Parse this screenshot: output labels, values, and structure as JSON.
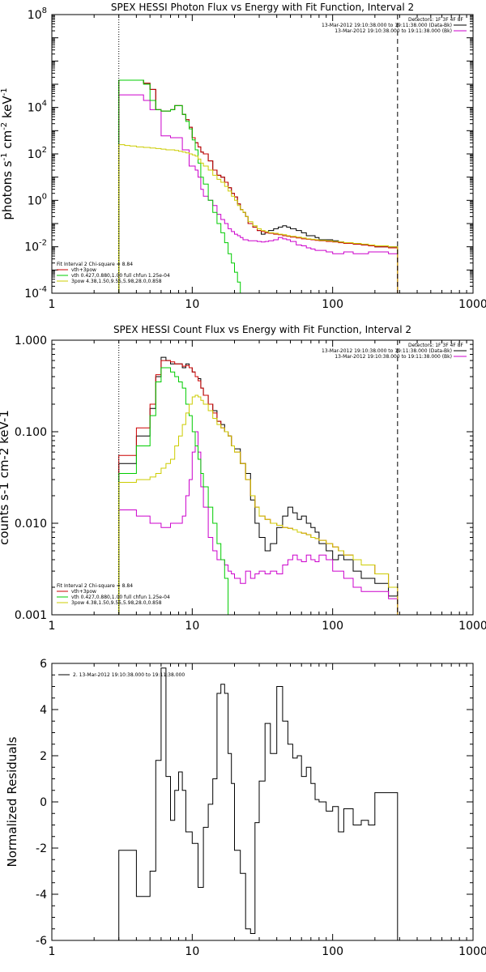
{
  "chart_data": [
    {
      "type": "line",
      "title": "SPEX HESSI Photon Flux vs Energy with Fit Function, Interval 2",
      "ylabel_html": "photons s<sup>-1</sup> cm<sup>-2</sup> keV<sup>-1</sup>",
      "ylabel": "photons s-1 cm-2 keV-1",
      "x_scale": "log",
      "y_scale": "log",
      "xlim": [
        1,
        1000
      ],
      "ylim": [
        0.0001,
        100000000
      ],
      "x_ticks": [
        {
          "v": 1,
          "label": "1"
        },
        {
          "v": 10,
          "label": "10"
        },
        {
          "v": 100,
          "label": "100"
        },
        {
          "v": 1000,
          "label": "1000"
        }
      ],
      "y_ticks": [
        {
          "v": 0.0001,
          "base": "10",
          "exp": "-4"
        },
        {
          "v": 0.01,
          "base": "10",
          "exp": "-2"
        },
        {
          "v": 1,
          "base": "10",
          "exp": "0"
        },
        {
          "v": 100,
          "base": "10",
          "exp": "2"
        },
        {
          "v": 10000,
          "base": "10",
          "exp": "4"
        },
        {
          "v": 100000000,
          "base": "10",
          "exp": "8"
        }
      ],
      "vlines": [
        {
          "x": 3,
          "style": "dotted"
        },
        {
          "x": 290,
          "style": "dashed"
        }
      ],
      "legend_tr": {
        "header": "Detectors: 1F 3F 4F 8F",
        "entries": [
          {
            "label": "13-Mar-2012 19:10:38.000 to 19:11:38.000 (Data-Bk)",
            "color": "#000000"
          },
          {
            "label": "13-Mar-2012 19:10:38.000 to 19:11:38.000 (Bk)",
            "color": "#cc00cc"
          }
        ]
      },
      "legend_bl": {
        "header": "Fit Interval 2   Chi-square = 8.84",
        "entries": [
          {
            "label": "vth+3pow",
            "color": "#cc0000"
          },
          {
            "label": "vth 0.427,0.880,1.00  full chfun 1.25e-04",
            "color": "#00cc00"
          },
          {
            "label": "3pow 4.38,1.50,9.55,5.98,28.0,0.858",
            "color": "#cccc00"
          }
        ]
      },
      "edges": [
        3,
        3.3,
        3.6,
        4,
        4.5,
        5,
        5.5,
        6,
        6.5,
        7,
        7.5,
        8,
        8.5,
        9,
        9.5,
        10,
        10.5,
        11,
        11.5,
        12,
        13,
        14,
        15,
        16,
        17,
        18,
        19,
        20,
        21,
        22,
        23,
        24,
        25,
        27,
        29,
        31,
        33,
        35,
        38,
        41,
        44,
        47,
        50,
        55,
        60,
        65,
        70,
        75,
        80,
        90,
        100,
        110,
        120,
        140,
        160,
        180,
        200,
        250,
        290
      ],
      "series": [
        {
          "name": "Data-Bk",
          "color": "#000000",
          "values": [
            150000,
            150000,
            150000,
            150000,
            110000,
            60000,
            8000,
            7000,
            7000,
            8000,
            12000,
            12000,
            5000,
            3000,
            1400,
            500,
            300,
            200,
            120,
            100,
            50,
            20,
            12,
            10,
            6,
            3.5,
            2,
            1.4,
            0.7,
            0.4,
            0.3,
            0.2,
            0.1,
            0.07,
            0.05,
            0.035,
            0.04,
            0.05,
            0.06,
            0.07,
            0.08,
            0.07,
            0.06,
            0.05,
            0.04,
            0.03,
            0.03,
            0.025,
            0.02,
            0.02,
            0.018,
            0.016,
            0.014,
            0.013,
            0.012,
            0.011,
            0.01,
            0.01
          ]
        },
        {
          "name": "Bk",
          "color": "#cc00cc",
          "values": [
            35000,
            35000,
            35000,
            35000,
            20000,
            8000,
            8000,
            600,
            600,
            500,
            500,
            500,
            150,
            150,
            30,
            30,
            20,
            10,
            3,
            1.5,
            1,
            0.6,
            0.25,
            0.15,
            0.1,
            0.06,
            0.045,
            0.035,
            0.03,
            0.025,
            0.02,
            0.02,
            0.018,
            0.018,
            0.017,
            0.016,
            0.017,
            0.018,
            0.02,
            0.025,
            0.022,
            0.02,
            0.017,
            0.012,
            0.011,
            0.009,
            0.008,
            0.007,
            0.007,
            0.006,
            0.005,
            0.005,
            0.006,
            0.005,
            0.005,
            0.006,
            0.006,
            0.005
          ]
        },
        {
          "name": "vth+3pow",
          "color": "#cc0000",
          "values": [
            150000,
            150000,
            150000,
            150000,
            110000,
            60000,
            8000,
            7000,
            7000,
            8000,
            12000,
            12000,
            5000,
            3000,
            1400,
            500,
            300,
            200,
            120,
            100,
            50,
            20,
            12,
            10,
            6,
            3.5,
            2,
            1.4,
            0.7,
            0.4,
            0.3,
            0.2,
            0.1,
            0.07,
            0.05,
            0.045,
            0.04,
            0.038,
            0.035,
            0.033,
            0.03,
            0.028,
            0.026,
            0.024,
            0.022,
            0.021,
            0.02,
            0.019,
            0.018,
            0.017,
            0.016,
            0.015,
            0.014,
            0.013,
            0.012,
            0.011,
            0.01,
            0.009
          ]
        },
        {
          "name": "vth",
          "color": "#00cc00",
          "values": [
            150000,
            150000,
            150000,
            150000,
            100000,
            20000,
            8000,
            7000,
            7000,
            8000,
            12000,
            12000,
            5000,
            2500,
            1200,
            400,
            150,
            40,
            10,
            5,
            1,
            0.3,
            0.1,
            0.04,
            0.015,
            0.005,
            0.002,
            0.0008,
            0.0003,
            0.0001
          ]
        },
        {
          "name": "3pow",
          "color": "#cccc00",
          "values": [
            250,
            230,
            220,
            200,
            190,
            180,
            170,
            160,
            150,
            150,
            140,
            130,
            120,
            110,
            100,
            90,
            80,
            60,
            40,
            30,
            20,
            12,
            8,
            6,
            4,
            2.5,
            1.5,
            1,
            0.6,
            0.4,
            0.3,
            0.2,
            0.12,
            0.08,
            0.06,
            0.05,
            0.045,
            0.04,
            0.038,
            0.035,
            0.033,
            0.03,
            0.028,
            0.026,
            0.024,
            0.022,
            0.021,
            0.02,
            0.019,
            0.018,
            0.017,
            0.016,
            0.015,
            0.014,
            0.013,
            0.012,
            0.011,
            0.01
          ]
        }
      ]
    },
    {
      "type": "line",
      "title": "SPEX HESSI Count Flux vs Energy with Fit Function, Interval 2",
      "ylabel": "counts s-1 cm-2 keV-1",
      "x_scale": "log",
      "y_scale": "log",
      "xlim": [
        1,
        1000
      ],
      "ylim": [
        0.001,
        1
      ],
      "x_ticks": [
        {
          "v": 1,
          "label": "1"
        },
        {
          "v": 10,
          "label": "10"
        },
        {
          "v": 100,
          "label": "100"
        },
        {
          "v": 1000,
          "label": "1000"
        }
      ],
      "y_ticks": [
        {
          "v": 0.001,
          "label": "0.001"
        },
        {
          "v": 0.01,
          "label": "0.010"
        },
        {
          "v": 0.1,
          "label": "0.100"
        },
        {
          "v": 1,
          "label": "1.000"
        }
      ],
      "vlines": [
        {
          "x": 3,
          "style": "dotted"
        },
        {
          "x": 290,
          "style": "dashed"
        }
      ],
      "legend_tr": {
        "header": "Detectors: 1F 3F 4F 8F",
        "entries": [
          {
            "label": "13-Mar-2012 19:10:38.000 to 19:11:38.000 (Data-Bk)",
            "color": "#000000"
          },
          {
            "label": "13-Mar-2012 19:10:38.000 to 19:11:38.000 (Bk)",
            "color": "#cc00cc"
          }
        ]
      },
      "legend_bl": {
        "header": "Fit Interval 2   Chi-square = 8.84",
        "entries": [
          {
            "label": "vth+3pow",
            "color": "#cc0000"
          },
          {
            "label": "vth 0.427,0.880,1.00  full chfun 1.25e-04",
            "color": "#00cc00"
          },
          {
            "label": "3pow 4.38,1.50,9.55,5.98,28.0,0.858",
            "color": "#cccc00"
          }
        ]
      },
      "edges": [
        3,
        4,
        5,
        5.5,
        6,
        6.5,
        7,
        7.5,
        8,
        8.5,
        9,
        9.5,
        10,
        10.5,
        11,
        11.5,
        12,
        13,
        14,
        15,
        16,
        17,
        18,
        19,
        20,
        22,
        24,
        26,
        28,
        30,
        33,
        36,
        40,
        44,
        48,
        52,
        56,
        60,
        65,
        70,
        75,
        80,
        90,
        100,
        110,
        120,
        140,
        160,
        200,
        250,
        290
      ],
      "series": [
        {
          "name": "Data-Bk",
          "color": "#000000",
          "values": [
            0.045,
            0.09,
            0.18,
            0.4,
            0.65,
            0.6,
            0.55,
            0.55,
            0.55,
            0.5,
            0.55,
            0.5,
            0.45,
            0.4,
            0.38,
            0.3,
            0.25,
            0.2,
            0.17,
            0.13,
            0.12,
            0.1,
            0.09,
            0.07,
            0.065,
            0.045,
            0.035,
            0.018,
            0.01,
            0.007,
            0.005,
            0.006,
            0.009,
            0.012,
            0.015,
            0.013,
            0.011,
            0.012,
            0.01,
            0.009,
            0.008,
            0.006,
            0.005,
            0.004,
            0.0045,
            0.004,
            0.003,
            0.0025,
            0.0022,
            0.0016
          ]
        },
        {
          "name": "Bk",
          "color": "#cc00cc",
          "values": [
            0.014,
            0.012,
            0.01,
            0.01,
            0.009,
            0.009,
            0.01,
            0.01,
            0.01,
            0.012,
            0.02,
            0.03,
            0.06,
            0.1,
            0.06,
            0.025,
            0.015,
            0.007,
            0.005,
            0.004,
            0.004,
            0.0035,
            0.003,
            0.0028,
            0.0025,
            0.0022,
            0.003,
            0.0025,
            0.0028,
            0.003,
            0.0028,
            0.003,
            0.0028,
            0.0035,
            0.004,
            0.0045,
            0.004,
            0.0038,
            0.0045,
            0.004,
            0.0038,
            0.0045,
            0.004,
            0.003,
            0.003,
            0.0025,
            0.002,
            0.0018,
            0.0018,
            0.0015
          ]
        },
        {
          "name": "vth+3pow",
          "color": "#cc0000",
          "values": [
            0.055,
            0.11,
            0.2,
            0.42,
            0.6,
            0.6,
            0.58,
            0.55,
            0.55,
            0.52,
            0.53,
            0.5,
            0.45,
            0.4,
            0.36,
            0.3,
            0.25,
            0.2,
            0.16,
            0.13,
            0.11,
            0.1,
            0.09,
            0.07,
            0.06,
            0.045,
            0.03,
            0.02,
            0.015,
            0.012,
            0.011,
            0.01,
            0.0095,
            0.009,
            0.0088,
            0.0085,
            0.008,
            0.0078,
            0.0075,
            0.007,
            0.0068,
            0.0065,
            0.006,
            0.0055,
            0.005,
            0.0045,
            0.004,
            0.0035,
            0.0028,
            0.002
          ]
        },
        {
          "name": "vth",
          "color": "#00cc00",
          "values": [
            0.035,
            0.07,
            0.15,
            0.35,
            0.5,
            0.5,
            0.45,
            0.4,
            0.35,
            0.3,
            0.2,
            0.15,
            0.1,
            0.07,
            0.05,
            0.035,
            0.025,
            0.015,
            0.01,
            0.006,
            0.004,
            0.0025,
            0.001
          ]
        },
        {
          "name": "3pow",
          "color": "#cccc00",
          "values": [
            0.028,
            0.03,
            0.032,
            0.035,
            0.04,
            0.045,
            0.05,
            0.07,
            0.09,
            0.12,
            0.16,
            0.2,
            0.24,
            0.25,
            0.24,
            0.22,
            0.2,
            0.17,
            0.14,
            0.12,
            0.11,
            0.1,
            0.09,
            0.07,
            0.06,
            0.045,
            0.03,
            0.02,
            0.015,
            0.012,
            0.011,
            0.01,
            0.0095,
            0.009,
            0.0088,
            0.0085,
            0.008,
            0.0078,
            0.0075,
            0.007,
            0.0068,
            0.0065,
            0.006,
            0.0055,
            0.005,
            0.0045,
            0.004,
            0.0035,
            0.0028,
            0.002
          ]
        }
      ]
    },
    {
      "type": "line",
      "title": "",
      "ylabel": "Normalized Residuals",
      "x_scale": "log",
      "y_scale": "linear",
      "xlim": [
        1,
        1000
      ],
      "ylim": [
        -6,
        6
      ],
      "x_ticks": [
        {
          "v": 1,
          "label": "1"
        },
        {
          "v": 10,
          "label": "10"
        },
        {
          "v": 100,
          "label": "100"
        },
        {
          "v": 1000,
          "label": "1000"
        }
      ],
      "y_ticks": [
        {
          "v": -6,
          "label": "-6"
        },
        {
          "v": -4,
          "label": "-4"
        },
        {
          "v": -2,
          "label": "-2"
        },
        {
          "v": 0,
          "label": "0"
        },
        {
          "v": 2,
          "label": "2"
        },
        {
          "v": 4,
          "label": "4"
        },
        {
          "v": 6,
          "label": "6"
        }
      ],
      "legend_tl": {
        "entries": [
          {
            "label": "2. 13-Mar-2012 19:10:38.000 to 19:11:38.000",
            "color": "#000000"
          }
        ]
      },
      "edges": [
        3,
        4,
        5,
        5.5,
        6,
        6.5,
        7,
        7.5,
        8,
        8.5,
        9,
        10,
        11,
        12,
        13,
        14,
        15,
        16,
        17,
        18,
        19,
        20,
        22,
        24,
        26,
        28,
        30,
        33,
        36,
        40,
        44,
        48,
        52,
        56,
        60,
        65,
        70,
        75,
        80,
        90,
        100,
        110,
        120,
        140,
        160,
        180,
        200,
        250,
        290
      ],
      "series": [
        {
          "name": "2",
          "color": "#000000",
          "values": [
            -2.1,
            -4.1,
            -3.0,
            1.8,
            5.8,
            1.1,
            -0.8,
            0.5,
            1.3,
            0.5,
            -1.3,
            -1.8,
            -3.7,
            -1.1,
            -0.1,
            1.0,
            4.7,
            5.1,
            4.7,
            2.1,
            0.8,
            -2.1,
            -3.1,
            -5.5,
            -5.7,
            -0.9,
            0.9,
            3.4,
            2.1,
            5.0,
            3.5,
            2.5,
            1.9,
            2.0,
            1.1,
            1.5,
            0.8,
            0.1,
            0.0,
            -0.4,
            -0.2,
            -1.3,
            -0.3,
            -1.0,
            -0.8,
            -1.0,
            0.4,
            0.4
          ]
        }
      ]
    }
  ]
}
